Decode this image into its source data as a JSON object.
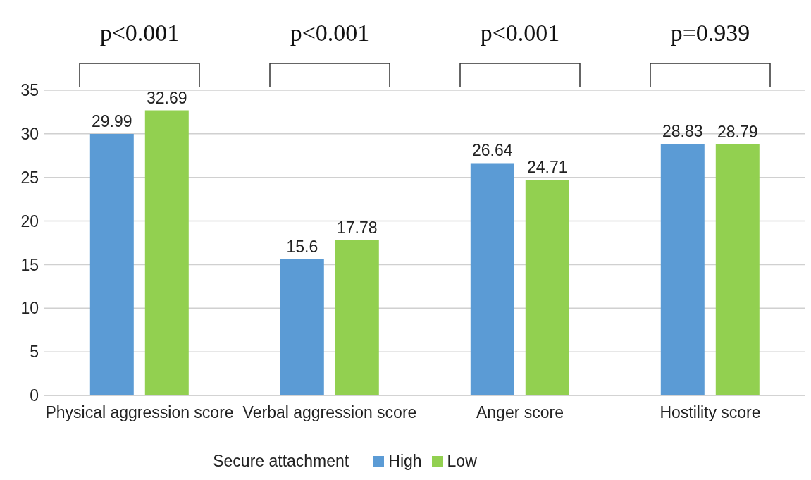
{
  "chart_data": {
    "type": "bar",
    "categories": [
      "Physical aggression score",
      "Verbal aggression score",
      "Anger score",
      "Hostility score"
    ],
    "series": [
      {
        "name": "High",
        "color": "#5b9bd5",
        "values": [
          29.99,
          15.6,
          26.64,
          28.83
        ]
      },
      {
        "name": "Low",
        "color": "#92d050",
        "values": [
          32.69,
          17.78,
          24.71,
          28.79
        ]
      }
    ],
    "legend_title": "Secure attachment",
    "legend": "bottom",
    "ylim": [
      0,
      35
    ],
    "yticks": [
      0,
      5,
      10,
      15,
      20,
      25,
      30,
      35
    ],
    "grid": "y",
    "data_labels": true,
    "annotations": [
      "p<0.001",
      "p<0.001",
      "p<0.001",
      "p=0.939"
    ]
  }
}
